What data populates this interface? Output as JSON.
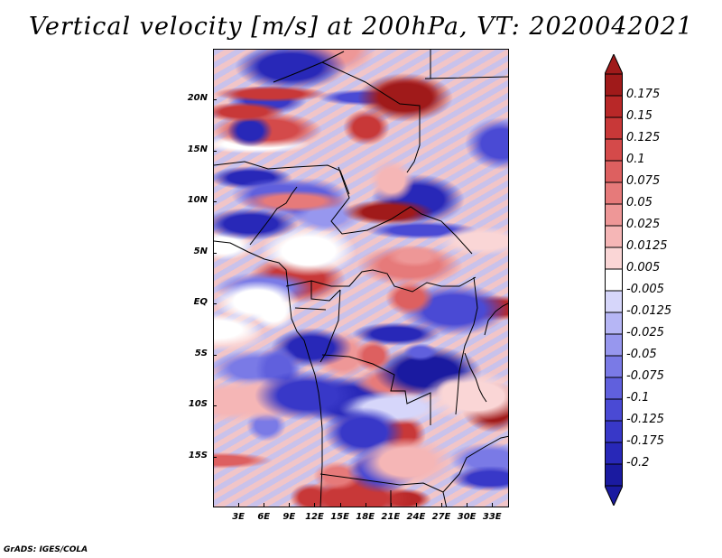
{
  "title": "Vertical velocity [m/s] at 200hPa, VT: 2020042021",
  "credit": "GrADS: IGES/COLA",
  "map": {
    "variable": "Vertical velocity",
    "units": "m/s",
    "level": "200hPa",
    "valid_time": "2020042021",
    "lat_range": [
      -20,
      25
    ],
    "lon_range": [
      0,
      35
    ],
    "lat_ticks": [
      {
        "value": 20,
        "label": "20N"
      },
      {
        "value": 15,
        "label": "15N"
      },
      {
        "value": 10,
        "label": "10N"
      },
      {
        "value": 5,
        "label": "5N"
      },
      {
        "value": 0,
        "label": "EQ"
      },
      {
        "value": -5,
        "label": "5S"
      },
      {
        "value": -10,
        "label": "10S"
      },
      {
        "value": -15,
        "label": "15S"
      }
    ],
    "lon_ticks": [
      {
        "value": 3,
        "label": "3E"
      },
      {
        "value": 6,
        "label": "6E"
      },
      {
        "value": 9,
        "label": "9E"
      },
      {
        "value": 12,
        "label": "12E"
      },
      {
        "value": 15,
        "label": "15E"
      },
      {
        "value": 18,
        "label": "18E"
      },
      {
        "value": 21,
        "label": "21E"
      },
      {
        "value": 24,
        "label": "24E"
      },
      {
        "value": 27,
        "label": "27E"
      },
      {
        "value": 30,
        "label": "30E"
      },
      {
        "value": 33,
        "label": "33E"
      }
    ]
  },
  "colorbar": {
    "labels": [
      "0.175",
      "0.15",
      "0.125",
      "0.1",
      "0.075",
      "0.05",
      "0.025",
      "0.0125",
      "0.005",
      "-0.005",
      "-0.0125",
      "-0.025",
      "-0.05",
      "-0.075",
      "-0.1",
      "-0.125",
      "-0.175",
      "-0.2"
    ],
    "colors": [
      "#a01a1a",
      "#b82828",
      "#c83838",
      "#d44a4a",
      "#dd6060",
      "#e67a7a",
      "#ee9797",
      "#f5b6b6",
      "#fad6d6",
      "#ffffff",
      "#d6d6fa",
      "#b6b6f5",
      "#9797ee",
      "#7a7ae6",
      "#6060dd",
      "#4a4ad4",
      "#3838c8",
      "#2828b8",
      "#1a1aa0"
    ],
    "end_colors": {
      "top": "#a01a1a",
      "bottom": "#1a1aa0"
    }
  }
}
